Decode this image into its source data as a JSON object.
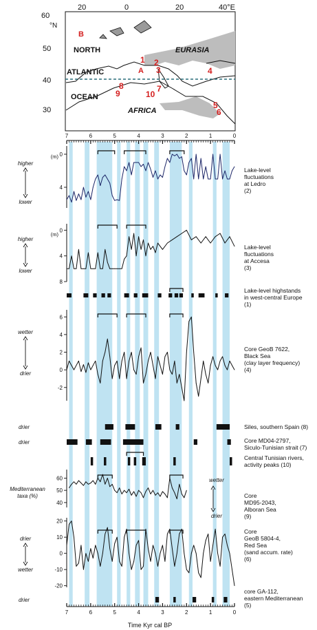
{
  "map": {
    "lat_labels": [
      "60",
      "°N",
      "50",
      "40",
      "30"
    ],
    "lon_labels": [
      "20",
      "0",
      "20",
      "40°E"
    ],
    "region_labels": {
      "north": "NORTH",
      "eurasia": "EURASIA",
      "atlantic": "ATLANTIC",
      "ocean": "OCEAN",
      "africa": "AFRICA"
    },
    "site_labels": [
      "B",
      "A",
      "1",
      "2",
      "3",
      "4",
      "5",
      "6",
      "7",
      "8",
      "9",
      "10"
    ]
  },
  "time_axis": {
    "label": "Time Kyr cal BP",
    "ticks": [
      "7",
      "6",
      "5",
      "4",
      "3",
      "2",
      "1",
      "0"
    ]
  },
  "colors": {
    "humid_band": "#bfe3f2",
    "ledro_line": "#1a2466",
    "black": "#111111",
    "site_red": "#d42020",
    "land_shade": "#bdbdbd",
    "dashed_line": "#2a6f7a"
  },
  "chart_data": [
    {
      "type": "line",
      "title": "Lake-level fluctuations at Ledro (2)",
      "description_lines": [
        "Lake-level",
        "fluctuations",
        "at Ledro",
        "(2)"
      ],
      "ylabel_top": "higher",
      "ylabel_bottom": "lower",
      "unit": "(m)",
      "yticks": [
        "0",
        "4"
      ],
      "ylim": [
        -1,
        6.5
      ],
      "inverted": true,
      "x": [
        7.0,
        6.9,
        6.8,
        6.7,
        6.6,
        6.5,
        6.4,
        6.3,
        6.2,
        6.1,
        6.0,
        5.9,
        5.8,
        5.7,
        5.6,
        5.5,
        5.4,
        5.3,
        5.2,
        5.1,
        5.0,
        4.9,
        4.8,
        4.7,
        4.6,
        4.5,
        4.4,
        4.3,
        4.2,
        4.1,
        4.0,
        3.9,
        3.8,
        3.7,
        3.6,
        3.5,
        3.4,
        3.3,
        3.2,
        3.1,
        3.0,
        2.9,
        2.8,
        2.7,
        2.6,
        2.5,
        2.4,
        2.3,
        2.2,
        2.1,
        2.0,
        1.9,
        1.8,
        1.7,
        1.6,
        1.5,
        1.4,
        1.3,
        1.2,
        1.1,
        1.0,
        0.9,
        0.8,
        0.7,
        0.6,
        0.5,
        0.4,
        0.3,
        0.2,
        0.1,
        0.0
      ],
      "values": [
        5.5,
        5.0,
        5.8,
        4.5,
        5.6,
        4.8,
        5.5,
        4.0,
        5.2,
        4.5,
        5.5,
        4.0,
        3.0,
        2.5,
        3.8,
        2.8,
        2.5,
        3.0,
        3.5,
        5.0,
        5.6,
        5.5,
        5.6,
        3.0,
        1.5,
        2.0,
        1.0,
        2.5,
        1.0,
        1.0,
        1.0,
        1.5,
        1.2,
        2.0,
        1.0,
        1.8,
        2.8,
        2.0,
        3.0,
        2.5,
        2.8,
        1.5,
        0.5,
        1.0,
        0.0,
        0.2,
        0.0,
        0.5,
        0.3,
        2.0,
        2.5,
        1.0,
        0.5,
        3.0,
        0.0,
        3.0,
        0.5,
        3.0,
        1.5,
        3.0,
        3.0,
        0.0,
        3.0,
        3.0,
        0.0,
        3.0,
        2.0,
        3.0,
        3.0,
        2.0,
        1.5
      ],
      "brackets": [
        [
          5.7,
          5.0
        ],
        [
          4.6,
          3.7
        ],
        [
          2.7,
          2.1
        ]
      ]
    },
    {
      "type": "line",
      "title": "Lake-level fluctuations at Accesa (3)",
      "description_lines": [
        "Lake-level",
        "fluctuations",
        "at Accesa",
        "(3)"
      ],
      "ylabel_top": "higher",
      "ylabel_bottom": "lower",
      "unit": "(m)",
      "yticks": [
        "0",
        "4",
        "8"
      ],
      "ylim": [
        -1,
        8
      ],
      "inverted": true,
      "x": [
        7.0,
        6.9,
        6.8,
        6.7,
        6.6,
        6.5,
        6.4,
        6.3,
        6.2,
        6.1,
        6.0,
        5.9,
        5.8,
        5.7,
        5.6,
        5.5,
        5.4,
        5.3,
        5.2,
        5.1,
        5.0,
        4.9,
        4.8,
        4.7,
        4.6,
        4.5,
        4.4,
        4.3,
        4.2,
        4.1,
        4.0,
        3.9,
        3.8,
        3.7,
        3.6,
        3.5,
        3.4,
        3.3,
        3.2,
        3.1,
        3.0,
        2.8,
        2.6,
        2.4,
        2.2,
        2.0,
        1.8,
        1.6,
        1.4,
        1.2,
        1.0,
        0.8,
        0.6,
        0.4,
        0.2,
        0.0
      ],
      "values": [
        6.0,
        6.0,
        4.0,
        6.0,
        6.0,
        3.0,
        6.0,
        6.0,
        6.0,
        3.5,
        6.0,
        6.0,
        6.0,
        3.5,
        6.0,
        6.0,
        3.0,
        5.0,
        6.0,
        6.0,
        6.0,
        6.0,
        6.0,
        6.0,
        4.5,
        4.0,
        1.0,
        3.0,
        0.5,
        4.0,
        1.0,
        3.0,
        1.5,
        4.0,
        2.0,
        3.0,
        2.5,
        3.5,
        2.0,
        2.5,
        3.0,
        2.0,
        1.5,
        1.0,
        0.5,
        0.0,
        1.5,
        1.0,
        2.0,
        1.0,
        2.0,
        1.0,
        0.5,
        2.0,
        1.0,
        2.5
      ],
      "brackets": [
        [
          5.7,
          4.9
        ],
        [
          4.5,
          3.7
        ]
      ]
    },
    {
      "type": "bar",
      "title": "Lake-level highstands in west-central Europe (1)",
      "description_lines": [
        "Lake-level highstands",
        "in west-central Europe",
        "(1)"
      ],
      "segments": [
        [
          7.0,
          6.8
        ],
        [
          6.3,
          6.1
        ],
        [
          5.9,
          5.75
        ],
        [
          5.55,
          5.4
        ],
        [
          5.3,
          5.15
        ],
        [
          4.6,
          4.4
        ],
        [
          4.2,
          4.05
        ],
        [
          3.85,
          3.6
        ],
        [
          3.2,
          3.05
        ],
        [
          2.75,
          2.6
        ],
        [
          2.5,
          2.35
        ],
        [
          2.3,
          2.15
        ],
        [
          1.8,
          1.7
        ],
        [
          1.5,
          1.25
        ],
        [
          0.8,
          0.7
        ],
        [
          0.4,
          0.25
        ]
      ],
      "brackets": [
        [
          2.7,
          2.15
        ]
      ]
    },
    {
      "type": "line",
      "title": "Core GeoB 7622, Black Sea (clay layer frequency) (4)",
      "description_lines": [
        "Core GeoB 7622,",
        "Black Sea",
        "(clay layer frequency)",
        "(4)"
      ],
      "ylabel_top": "wetter",
      "ylabel_bottom": "drier",
      "yticks": [
        "6",
        "4",
        "2",
        "0",
        "-2"
      ],
      "ylim": [
        -3.5,
        6.8
      ],
      "x": [
        7.0,
        6.9,
        6.8,
        6.7,
        6.6,
        6.5,
        6.4,
        6.3,
        6.2,
        6.1,
        6.0,
        5.9,
        5.8,
        5.7,
        5.6,
        5.5,
        5.4,
        5.3,
        5.2,
        5.1,
        5.0,
        4.9,
        4.8,
        4.7,
        4.6,
        4.5,
        4.4,
        4.3,
        4.2,
        4.1,
        4.0,
        3.9,
        3.8,
        3.7,
        3.6,
        3.5,
        3.4,
        3.3,
        3.2,
        3.1,
        3.0,
        2.9,
        2.8,
        2.7,
        2.6,
        2.5,
        2.4,
        2.3,
        2.2,
        2.1,
        2.0,
        1.9,
        1.8,
        1.7,
        1.6,
        1.5,
        1.4,
        1.3,
        1.2,
        1.1,
        1.0,
        0.9,
        0.8,
        0.7,
        0.6,
        0.5,
        0.4,
        0.3,
        0.2,
        0.1,
        0.0
      ],
      "values": [
        0.0,
        1.0,
        0.5,
        0.0,
        0.5,
        1.0,
        -0.2,
        0.6,
        -0.3,
        0.8,
        0.0,
        0.5,
        1.0,
        -0.5,
        -1.5,
        1.0,
        2.0,
        3.5,
        1.5,
        -1.0,
        0.5,
        1.0,
        -1.0,
        1.0,
        2.0,
        -1.0,
        1.0,
        2.0,
        0.0,
        -0.5,
        1.5,
        2.5,
        -1.5,
        -0.5,
        1.0,
        2.0,
        0.5,
        -1.0,
        1.5,
        0.5,
        -0.5,
        1.5,
        2.0,
        0.0,
        -0.5,
        1.0,
        -1.5,
        -0.5,
        -2.0,
        -3.5,
        2.0,
        5.5,
        6.0,
        2.0,
        -1.5,
        -3.0,
        -1.0,
        1.0,
        -0.5,
        -1.5,
        0.5,
        1.5,
        0.5,
        0.0,
        1.0,
        1.5,
        0.5,
        0.0,
        1.0,
        0.5,
        0.0
      ],
      "brackets": [
        [
          5.7,
          4.9
        ],
        [
          4.5,
          3.7
        ],
        [
          2.7,
          2.15
        ]
      ]
    },
    {
      "type": "bar",
      "title": "Siles, southern Spain (8)",
      "row_label": "drier",
      "segments": [
        [
          5.4,
          5.05
        ],
        [
          4.55,
          4.15
        ],
        [
          3.3,
          3.05
        ],
        [
          2.45,
          2.3
        ],
        [
          0.75,
          0.2
        ]
      ]
    },
    {
      "type": "bar",
      "title": "Core MD04-2797, Siculo-Tunisian strait (7)",
      "row_label": "drier",
      "segments": [
        [
          7.0,
          6.55
        ],
        [
          6.2,
          5.95
        ],
        [
          5.6,
          5.15
        ],
        [
          4.65,
          3.8
        ],
        [
          1.7,
          1.55
        ],
        [
          0.3,
          0.15
        ]
      ]
    },
    {
      "type": "bar",
      "title": "Central Tunisian rivers, activity peaks (10)",
      "segments": [
        [
          6.0,
          5.9
        ],
        [
          5.45,
          5.35
        ],
        [
          4.45,
          4.35
        ],
        [
          4.2,
          4.1
        ],
        [
          3.85,
          3.7
        ],
        [
          2.55,
          2.45
        ],
        [
          0.2,
          0.1
        ]
      ],
      "brackets": [
        [
          4.5,
          3.8
        ]
      ]
    },
    {
      "type": "line",
      "title": "Core MD95-2043, Alboran Sea (9)",
      "description_lines": [
        "Core",
        "MD95-2043,",
        "Alboran Sea",
        "(9)"
      ],
      "ylabel_side": [
        "Mediterranean",
        "taxa (%)"
      ],
      "annotations": {
        "wetter": "wetter",
        "drier": "drier"
      },
      "yticks": [
        "60",
        "50",
        "40"
      ],
      "ylim": [
        36,
        67
      ],
      "x": [
        6.9,
        6.8,
        6.7,
        6.6,
        6.5,
        6.4,
        6.3,
        6.2,
        6.1,
        6.0,
        5.9,
        5.8,
        5.7,
        5.6,
        5.5,
        5.4,
        5.3,
        5.2,
        5.1,
        5.0,
        4.9,
        4.8,
        4.7,
        4.6,
        4.5,
        4.4,
        4.3,
        4.2,
        4.1,
        4.0,
        3.9,
        3.8,
        3.7,
        3.6,
        3.5,
        3.4,
        3.3,
        3.2,
        3.1,
        3.0,
        2.9,
        2.8,
        2.7,
        2.6,
        2.5,
        2.4,
        2.3,
        2.2,
        2.1,
        2.0
      ],
      "values": [
        52,
        55,
        57,
        55,
        58,
        56,
        54,
        57,
        55,
        56,
        58,
        55,
        60,
        57,
        63,
        55,
        60,
        53,
        55,
        50,
        48,
        52,
        47,
        50,
        48,
        51,
        46,
        49,
        45,
        50,
        48,
        44,
        49,
        52,
        47,
        50,
        46,
        48,
        45,
        49,
        47,
        44,
        60,
        52,
        48,
        43,
        55,
        47,
        44,
        50
      ],
      "brackets": [
        [
          5.7,
          5.1
        ],
        [
          2.7,
          2.15
        ]
      ]
    },
    {
      "type": "line",
      "title": "Core GeoB 5804-4, Red Sea (sand accum. rate) (6)",
      "description_lines": [
        "Core",
        "GeoB 5804-4,",
        "Red Sea",
        "(sand accum. rate)",
        "(6)"
      ],
      "ylabel_top": "drier",
      "ylabel_bottom": "wetter",
      "yticks": [
        "20",
        "10",
        "0",
        "-10",
        "-20"
      ],
      "ylim": [
        -21,
        22
      ],
      "x": [
        7.0,
        6.9,
        6.8,
        6.7,
        6.6,
        6.5,
        6.4,
        6.3,
        6.2,
        6.1,
        6.0,
        5.9,
        5.8,
        5.7,
        5.6,
        5.5,
        5.4,
        5.3,
        5.2,
        5.1,
        5.0,
        4.9,
        4.8,
        4.7,
        4.6,
        4.5,
        4.4,
        4.3,
        4.2,
        4.1,
        4.0,
        3.9,
        3.8,
        3.7,
        3.6,
        3.5,
        3.4,
        3.3,
        3.2,
        3.1,
        3.0,
        2.9,
        2.8,
        2.7,
        2.6,
        2.5,
        2.4,
        2.3,
        2.2,
        2.1,
        2.0,
        1.9,
        1.8,
        1.7,
        1.6,
        1.5,
        1.4,
        1.3,
        1.2,
        1.1,
        1.0,
        0.9,
        0.8,
        0.7,
        0.6,
        0.5,
        0.4,
        0.3,
        0.2,
        0.1,
        0.0
      ],
      "values": [
        5,
        18,
        20,
        10,
        -8,
        -6,
        5,
        -10,
        0,
        -5,
        3,
        -3,
        5,
        0,
        -8,
        0,
        12,
        16,
        3,
        -5,
        6,
        10,
        -5,
        -8,
        10,
        15,
        0,
        -10,
        -5,
        5,
        8,
        -10,
        -8,
        15,
        3,
        -5,
        5,
        0,
        -8,
        0,
        5,
        -5,
        12,
        15,
        3,
        -8,
        0,
        12,
        15,
        0,
        -10,
        -12,
        0,
        5,
        0,
        -12,
        -15,
        0,
        8,
        12,
        -5,
        5,
        15,
        0,
        -8,
        10,
        12,
        5,
        0,
        -10,
        -20
      ],
      "brackets": [
        [
          5.7,
          5.1
        ],
        [
          4.5,
          3.7
        ],
        [
          2.7,
          2.15
        ]
      ]
    },
    {
      "type": "bar",
      "title": "core GA-112, eastern Mediterranean (5)",
      "description_lines": [
        "core GA-112,",
        "eastern Mediterranean",
        "(5)"
      ],
      "row_label": "drier",
      "segments": [
        [
          3.3,
          3.15
        ],
        [
          2.55,
          2.45
        ],
        [
          1.75,
          1.6
        ],
        [
          0.95,
          0.85
        ],
        [
          0.45,
          0.3
        ]
      ]
    }
  ],
  "humid_bands": [
    [
      6.9,
      6.75
    ],
    [
      6.25,
      6.05
    ],
    [
      5.75,
      5.1
    ],
    [
      4.9,
      4.75
    ],
    [
      4.5,
      4.35
    ],
    [
      4.15,
      3.95
    ],
    [
      3.8,
      3.6
    ],
    [
      3.35,
      3.15
    ],
    [
      2.7,
      2.2
    ],
    [
      1.9,
      1.75
    ],
    [
      0.9,
      0.75
    ],
    [
      0.5,
      0.2
    ]
  ]
}
